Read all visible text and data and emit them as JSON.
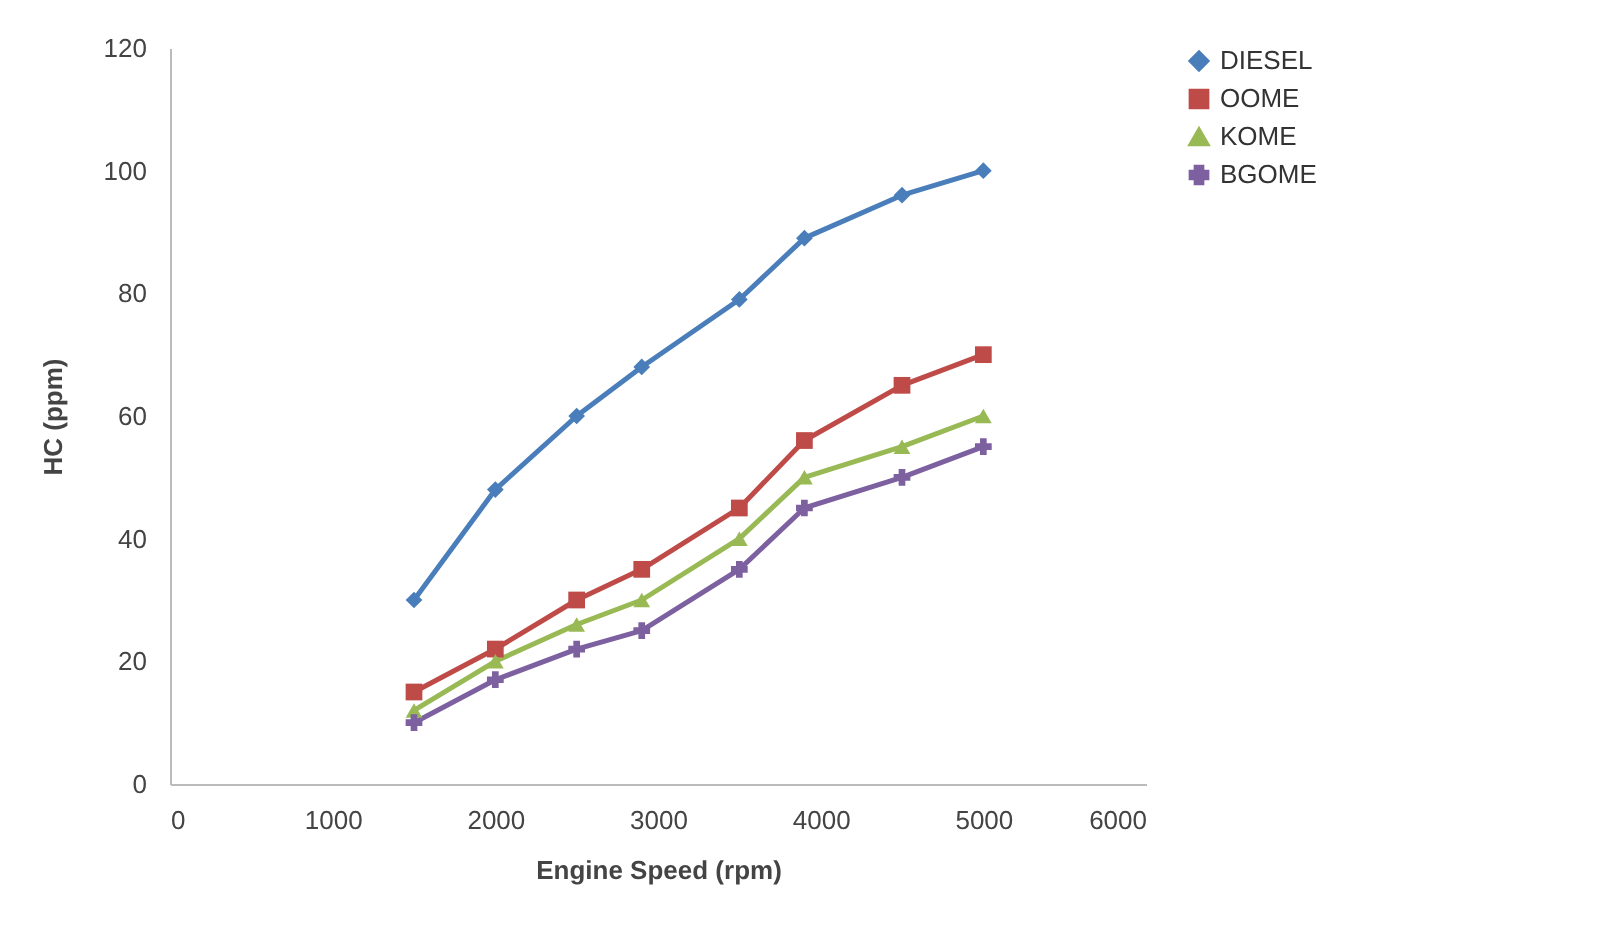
{
  "chart_data": {
    "type": "line",
    "xlabel": "Engine Speed (rpm)",
    "ylabel": "HC (ppm)",
    "x": [
      1500,
      2000,
      2500,
      2900,
      3500,
      3900,
      4500,
      5000
    ],
    "series": [
      {
        "name": "DIESEL",
        "color": "#4a7ebb",
        "marker": "diamond",
        "values": [
          30,
          48,
          60,
          68,
          79,
          89,
          96,
          100
        ]
      },
      {
        "name": "OOME",
        "color": "#be4b48",
        "marker": "square",
        "values": [
          15,
          22,
          30,
          35,
          45,
          56,
          65,
          70
        ]
      },
      {
        "name": "KOME",
        "color": "#98b954",
        "marker": "triangle",
        "values": [
          12,
          20,
          26,
          30,
          40,
          50,
          55,
          60
        ]
      },
      {
        "name": "BGOME",
        "color": "#7d60a0",
        "marker": "cross",
        "values": [
          10,
          17,
          22,
          25,
          35,
          45,
          50,
          55
        ]
      }
    ],
    "xlim": [
      0,
      6000
    ],
    "xticks": [
      0,
      1000,
      2000,
      3000,
      4000,
      5000,
      6000
    ],
    "ylim": [
      0,
      120
    ],
    "yticks": [
      0,
      20,
      40,
      60,
      80,
      100,
      120
    ],
    "grid": false,
    "legend": "right"
  }
}
